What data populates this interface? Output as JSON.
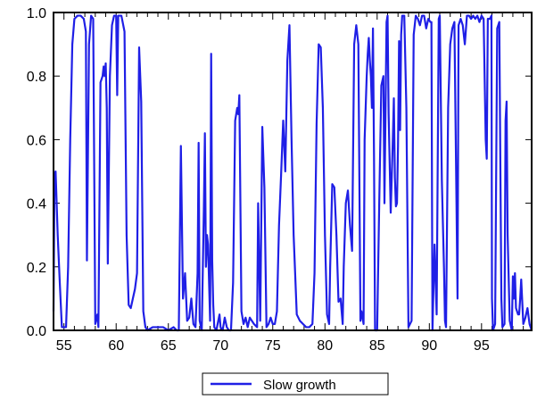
{
  "chart_data": {
    "type": "line",
    "title": "",
    "xlabel": "",
    "ylabel": "",
    "xlim": [
      1954,
      1999.8
    ],
    "ylim": [
      0,
      1
    ],
    "grid": false,
    "legend_position": "bottom-center",
    "x_ticks": [
      {
        "value": 1955,
        "label": "55"
      },
      {
        "value": 1960,
        "label": "60"
      },
      {
        "value": 1965,
        "label": "65"
      },
      {
        "value": 1970,
        "label": "70"
      },
      {
        "value": 1975,
        "label": "75"
      },
      {
        "value": 1980,
        "label": "80"
      },
      {
        "value": 1985,
        "label": "85"
      },
      {
        "value": 1990,
        "label": "90"
      },
      {
        "value": 1995,
        "label": "95"
      }
    ],
    "y_ticks": [
      {
        "value": 0.0,
        "label": "0.0"
      },
      {
        "value": 0.2,
        "label": "0.2"
      },
      {
        "value": 0.4,
        "label": "0.4"
      },
      {
        "value": 0.6,
        "label": "0.6"
      },
      {
        "value": 0.8,
        "label": "0.8"
      },
      {
        "value": 1.0,
        "label": "1.0"
      }
    ],
    "series": [
      {
        "name": "Slow growth",
        "color": "#1f1fe6",
        "points": [
          [
            1954.0,
            0.06
          ],
          [
            1954.1,
            0.49
          ],
          [
            1954.2,
            0.5
          ],
          [
            1954.4,
            0.3
          ],
          [
            1954.6,
            0.15
          ],
          [
            1954.8,
            0.01
          ],
          [
            1955.0,
            0.01
          ],
          [
            1955.2,
            0.01
          ],
          [
            1955.4,
            0.2
          ],
          [
            1955.6,
            0.6
          ],
          [
            1955.8,
            0.9
          ],
          [
            1956.0,
            0.98
          ],
          [
            1956.3,
            0.99
          ],
          [
            1956.6,
            0.99
          ],
          [
            1956.9,
            0.98
          ],
          [
            1957.1,
            0.94
          ],
          [
            1957.2,
            0.22
          ],
          [
            1957.4,
            0.9
          ],
          [
            1957.6,
            0.99
          ],
          [
            1957.8,
            0.98
          ],
          [
            1958.0,
            0.02
          ],
          [
            1958.2,
            0.05
          ],
          [
            1958.3,
            0.01
          ],
          [
            1958.5,
            0.78
          ],
          [
            1958.7,
            0.8
          ],
          [
            1958.8,
            0.83
          ],
          [
            1958.9,
            0.8
          ],
          [
            1959.0,
            0.84
          ],
          [
            1959.1,
            0.7
          ],
          [
            1959.2,
            0.21
          ],
          [
            1959.4,
            0.8
          ],
          [
            1959.6,
            0.96
          ],
          [
            1959.8,
            0.99
          ],
          [
            1960.0,
            0.99
          ],
          [
            1960.1,
            0.74
          ],
          [
            1960.2,
            0.99
          ],
          [
            1960.5,
            0.99
          ],
          [
            1960.8,
            0.94
          ],
          [
            1961.0,
            0.3
          ],
          [
            1961.2,
            0.08
          ],
          [
            1961.4,
            0.07
          ],
          [
            1961.6,
            0.1
          ],
          [
            1961.8,
            0.13
          ],
          [
            1962.0,
            0.18
          ],
          [
            1962.2,
            0.89
          ],
          [
            1962.4,
            0.72
          ],
          [
            1962.6,
            0.06
          ],
          [
            1962.8,
            0.01
          ],
          [
            1963.0,
            0.0
          ],
          [
            1963.5,
            0.01
          ],
          [
            1964.0,
            0.01
          ],
          [
            1964.5,
            0.01
          ],
          [
            1965.0,
            0.0
          ],
          [
            1965.5,
            0.01
          ],
          [
            1965.8,
            0.0
          ],
          [
            1966.0,
            0.0
          ],
          [
            1966.2,
            0.58
          ],
          [
            1966.4,
            0.1
          ],
          [
            1966.6,
            0.18
          ],
          [
            1966.8,
            0.03
          ],
          [
            1967.0,
            0.04
          ],
          [
            1967.2,
            0.1
          ],
          [
            1967.4,
            0.02
          ],
          [
            1967.6,
            0.01
          ],
          [
            1967.8,
            0.18
          ],
          [
            1967.9,
            0.59
          ],
          [
            1968.0,
            0.03
          ],
          [
            1968.2,
            0.0
          ],
          [
            1968.4,
            0.38
          ],
          [
            1968.5,
            0.62
          ],
          [
            1968.6,
            0.2
          ],
          [
            1968.7,
            0.3
          ],
          [
            1968.8,
            0.27
          ],
          [
            1969.0,
            0.03
          ],
          [
            1969.1,
            0.87
          ],
          [
            1969.2,
            0.22
          ],
          [
            1969.3,
            0.08
          ],
          [
            1969.4,
            0.01
          ],
          [
            1969.6,
            0.0
          ],
          [
            1969.9,
            0.05
          ],
          [
            1970.0,
            0.01
          ],
          [
            1970.2,
            0.0
          ],
          [
            1970.4,
            0.04
          ],
          [
            1970.6,
            0.01
          ],
          [
            1970.8,
            0.0
          ],
          [
            1971.0,
            0.0
          ],
          [
            1971.2,
            0.15
          ],
          [
            1971.4,
            0.66
          ],
          [
            1971.6,
            0.7
          ],
          [
            1971.7,
            0.68
          ],
          [
            1971.8,
            0.74
          ],
          [
            1972.0,
            0.06
          ],
          [
            1972.2,
            0.02
          ],
          [
            1972.4,
            0.04
          ],
          [
            1972.6,
            0.01
          ],
          [
            1972.8,
            0.04
          ],
          [
            1973.0,
            0.03
          ],
          [
            1973.2,
            0.02
          ],
          [
            1973.5,
            0.01
          ],
          [
            1973.6,
            0.4
          ],
          [
            1973.8,
            0.03
          ],
          [
            1974.0,
            0.64
          ],
          [
            1974.2,
            0.45
          ],
          [
            1974.4,
            0.01
          ],
          [
            1974.6,
            0.02
          ],
          [
            1974.8,
            0.04
          ],
          [
            1975.0,
            0.02
          ],
          [
            1975.2,
            0.02
          ],
          [
            1975.4,
            0.06
          ],
          [
            1975.6,
            0.33
          ],
          [
            1975.8,
            0.49
          ],
          [
            1976.0,
            0.66
          ],
          [
            1976.2,
            0.5
          ],
          [
            1976.4,
            0.85
          ],
          [
            1976.6,
            0.96
          ],
          [
            1976.8,
            0.6
          ],
          [
            1977.0,
            0.3
          ],
          [
            1977.3,
            0.05
          ],
          [
            1977.6,
            0.03
          ],
          [
            1977.9,
            0.02
          ],
          [
            1978.2,
            0.01
          ],
          [
            1978.5,
            0.01
          ],
          [
            1978.8,
            0.02
          ],
          [
            1979.0,
            0.18
          ],
          [
            1979.2,
            0.65
          ],
          [
            1979.4,
            0.9
          ],
          [
            1979.6,
            0.89
          ],
          [
            1979.8,
            0.7
          ],
          [
            1980.0,
            0.3
          ],
          [
            1980.2,
            0.05
          ],
          [
            1980.4,
            0.02
          ],
          [
            1980.5,
            0.2
          ],
          [
            1980.7,
            0.46
          ],
          [
            1980.9,
            0.45
          ],
          [
            1981.1,
            0.3
          ],
          [
            1981.3,
            0.09
          ],
          [
            1981.5,
            0.1
          ],
          [
            1981.7,
            0.02
          ],
          [
            1981.8,
            0.2
          ],
          [
            1982.0,
            0.4
          ],
          [
            1982.2,
            0.44
          ],
          [
            1982.4,
            0.33
          ],
          [
            1982.6,
            0.25
          ],
          [
            1982.8,
            0.9
          ],
          [
            1983.0,
            0.96
          ],
          [
            1983.2,
            0.9
          ],
          [
            1983.4,
            0.03
          ],
          [
            1983.5,
            0.06
          ],
          [
            1983.7,
            0.02
          ],
          [
            1983.8,
            0.6
          ],
          [
            1984.0,
            0.8
          ],
          [
            1984.1,
            0.87
          ],
          [
            1984.2,
            0.92
          ],
          [
            1984.3,
            0.85
          ],
          [
            1984.4,
            0.8
          ],
          [
            1984.5,
            0.7
          ],
          [
            1984.6,
            0.95
          ],
          [
            1984.7,
            0.55
          ],
          [
            1984.8,
            0.0
          ],
          [
            1985.0,
            0.0
          ],
          [
            1985.2,
            0.4
          ],
          [
            1985.4,
            0.77
          ],
          [
            1985.6,
            0.8
          ],
          [
            1985.7,
            0.4
          ],
          [
            1985.9,
            0.97
          ],
          [
            1986.0,
            0.99
          ],
          [
            1986.1,
            0.68
          ],
          [
            1986.3,
            0.37
          ],
          [
            1986.5,
            0.6
          ],
          [
            1986.6,
            0.73
          ],
          [
            1986.7,
            0.48
          ],
          [
            1986.8,
            0.39
          ],
          [
            1986.9,
            0.4
          ],
          [
            1987.0,
            0.58
          ],
          [
            1987.1,
            0.91
          ],
          [
            1987.2,
            0.63
          ],
          [
            1987.3,
            0.93
          ],
          [
            1987.4,
            0.99
          ],
          [
            1987.6,
            0.99
          ],
          [
            1987.8,
            0.7
          ],
          [
            1988.0,
            0.01
          ],
          [
            1988.3,
            0.03
          ],
          [
            1988.5,
            0.93
          ],
          [
            1988.7,
            0.99
          ],
          [
            1988.9,
            0.98
          ],
          [
            1989.1,
            0.96
          ],
          [
            1989.3,
            0.99
          ],
          [
            1989.5,
            0.99
          ],
          [
            1989.7,
            0.95
          ],
          [
            1989.9,
            0.98
          ],
          [
            1990.1,
            0.97
          ],
          [
            1990.2,
            0.97
          ],
          [
            1990.3,
            0.0
          ],
          [
            1990.5,
            0.27
          ],
          [
            1990.7,
            0.05
          ],
          [
            1990.9,
            0.98
          ],
          [
            1991.0,
            0.99
          ],
          [
            1991.2,
            0.47
          ],
          [
            1991.4,
            0.2
          ],
          [
            1991.5,
            0.03
          ],
          [
            1991.6,
            0.01
          ],
          [
            1991.8,
            0.7
          ],
          [
            1992.0,
            0.9
          ],
          [
            1992.2,
            0.95
          ],
          [
            1992.4,
            0.97
          ],
          [
            1992.6,
            0.4
          ],
          [
            1992.7,
            0.1
          ],
          [
            1992.8,
            0.96
          ],
          [
            1993.0,
            0.98
          ],
          [
            1993.2,
            0.96
          ],
          [
            1993.4,
            0.9
          ],
          [
            1993.6,
            0.99
          ],
          [
            1993.8,
            0.99
          ],
          [
            1994.0,
            0.98
          ],
          [
            1994.2,
            0.99
          ],
          [
            1994.4,
            0.98
          ],
          [
            1994.6,
            0.99
          ],
          [
            1994.8,
            0.97
          ],
          [
            1995.0,
            0.99
          ],
          [
            1995.2,
            0.98
          ],
          [
            1995.4,
            0.6
          ],
          [
            1995.5,
            0.54
          ],
          [
            1995.6,
            0.98
          ],
          [
            1995.8,
            0.98
          ],
          [
            1995.95,
            0.99
          ],
          [
            1996.0,
            0.1
          ],
          [
            1996.1,
            0.0
          ],
          [
            1996.3,
            0.02
          ],
          [
            1996.5,
            0.95
          ],
          [
            1996.7,
            0.97
          ],
          [
            1996.9,
            0.1
          ],
          [
            1997.0,
            0.01
          ],
          [
            1997.2,
            0.02
          ],
          [
            1997.3,
            0.66
          ],
          [
            1997.4,
            0.72
          ],
          [
            1997.5,
            0.3
          ],
          [
            1997.7,
            0.03
          ],
          [
            1997.9,
            0.0
          ],
          [
            1998.0,
            0.17
          ],
          [
            1998.1,
            0.1
          ],
          [
            1998.2,
            0.18
          ],
          [
            1998.3,
            0.07
          ],
          [
            1998.5,
            0.05
          ],
          [
            1998.6,
            0.05
          ],
          [
            1998.7,
            0.1
          ],
          [
            1998.8,
            0.16
          ],
          [
            1999.0,
            0.02
          ],
          [
            1999.2,
            0.04
          ],
          [
            1999.4,
            0.07
          ],
          [
            1999.6,
            0.02
          ],
          [
            1999.8,
            0.0
          ]
        ]
      }
    ]
  }
}
